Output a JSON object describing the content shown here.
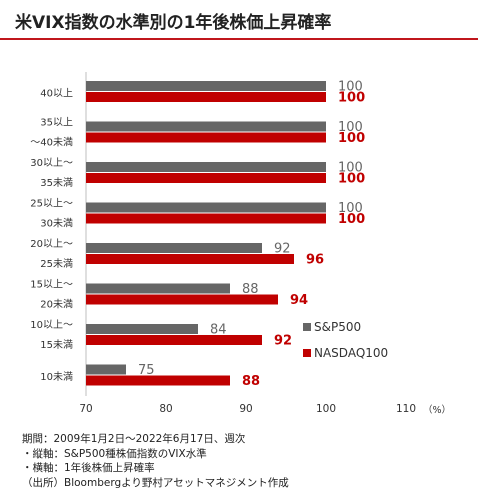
{
  "title": "米VIX指数の水準別の1年後株価上昇確率",
  "chart_data": {
    "type": "bar",
    "orientation": "horizontal",
    "categories": [
      [
        "40以上"
      ],
      [
        "35以上",
        "～40未満"
      ],
      [
        "30以上～",
        "35未満"
      ],
      [
        "25以上～",
        "30未満"
      ],
      [
        "20以上～",
        "25未満"
      ],
      [
        "15以上～",
        "20未満"
      ],
      [
        "10以上～",
        "15未満"
      ],
      [
        "10未満"
      ]
    ],
    "series": [
      {
        "name": "S&P500",
        "color": "#666666",
        "label_color": "#666666",
        "values": [
          100,
          100,
          100,
          100,
          92,
          88,
          84,
          75
        ]
      },
      {
        "name": "NASDAQ100",
        "color": "#c00000",
        "label_color": "#c00000",
        "values": [
          100,
          100,
          100,
          100,
          96,
          94,
          92,
          88
        ]
      }
    ],
    "xlim": [
      70,
      110
    ],
    "xticks": [
      "70",
      "80",
      "90",
      "100",
      "110"
    ],
    "xunit": "（%）",
    "grid": false,
    "legend_position": "right"
  },
  "footnotes": [
    "期間：2009年1月2日～2022年6月17日、週次",
    "・縦軸：S&P500種株価指数のVIX水準",
    "・横軸：1年後株価上昇確率",
    "（出所）Bloombergより野村アセットマネジメント作成"
  ]
}
